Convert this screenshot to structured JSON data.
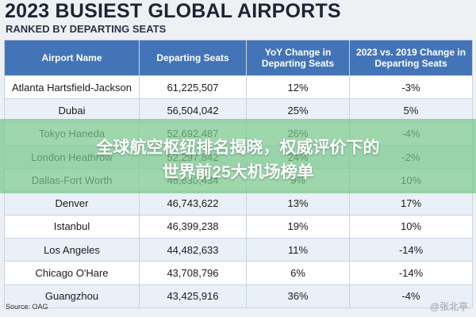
{
  "header": {
    "title": "2023 BUSIEST GLOBAL AIRPORTS",
    "subtitle": "RANKED BY DEPARTING SEATS"
  },
  "table": {
    "columns": [
      "Airport Name",
      "Departing Seats",
      "YoY Change in Departing Seats",
      "2023 vs. 2019 Change in Departing Seats"
    ],
    "rows": [
      [
        "Atlanta Hartsfield-Jackson",
        "61,225,507",
        "12%",
        "-3%"
      ],
      [
        "Dubai",
        "56,504,042",
        "25%",
        "5%"
      ],
      [
        "Tokyo Haneda",
        "52,692,487",
        "26%",
        "-4%"
      ],
      [
        "London Heathrow",
        "52,297,842",
        "24%",
        "-2%"
      ],
      [
        "Dallas-Fort Worth",
        "48,830,434",
        "9%",
        "10%"
      ],
      [
        "Denver",
        "46,743,622",
        "13%",
        "17%"
      ],
      [
        "Istanbul",
        "46,399,238",
        "19%",
        "10%"
      ],
      [
        "Los Angeles",
        "44,482,633",
        "11%",
        "-14%"
      ],
      [
        "Chicago O'Hare",
        "43,708,796",
        "6%",
        "-14%"
      ],
      [
        "Guangzhou",
        "43,425,916",
        "36%",
        "-4%"
      ]
    ]
  },
  "source": "Source: OAG",
  "watermark": "@张北亭",
  "banner": [
    "全球航空枢纽排名揭晓，权威评价下的",
    "世界前25大机场榜单"
  ]
}
